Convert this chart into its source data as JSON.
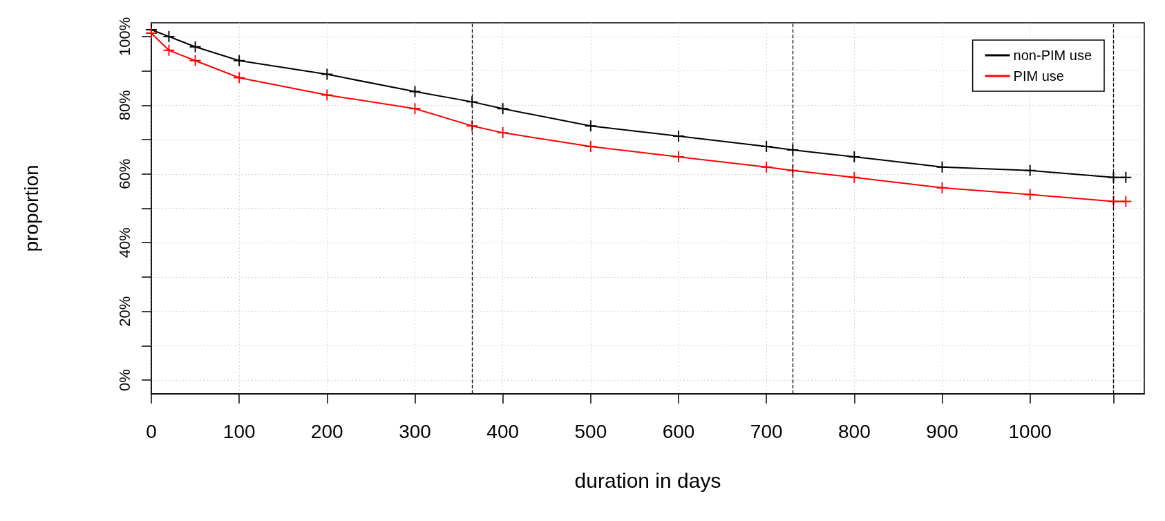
{
  "chart_data": {
    "type": "line",
    "xlabel": "duration in days",
    "ylabel": "proportion",
    "x": [
      0,
      20,
      50,
      100,
      200,
      300,
      365,
      400,
      500,
      600,
      700,
      730,
      800,
      900,
      1000,
      1095,
      1109
    ],
    "series": [
      {
        "name": "non-PIM use",
        "color": "#000000",
        "values": [
          102,
          100,
          97,
          93,
          89,
          84,
          81,
          79,
          74,
          71,
          68,
          67,
          65,
          62,
          61,
          59,
          59
        ]
      },
      {
        "name": "PIM use",
        "color": "#ff0000",
        "values": [
          101,
          96,
          93,
          88,
          83,
          79,
          74,
          72,
          68,
          65,
          62,
          61,
          59,
          56,
          54,
          52,
          52
        ]
      }
    ],
    "xlim": [
      0,
      1130
    ],
    "ylim": [
      -4,
      104
    ],
    "xticks": [
      0,
      100,
      200,
      300,
      400,
      500,
      600,
      700,
      800,
      900,
      1000,
      {
        "value": 1095,
        "label": null
      }
    ],
    "yticks": [
      {
        "value": 0,
        "label": "0%"
      },
      {
        "value": 10,
        "label": null
      },
      {
        "value": 20,
        "label": "20%"
      },
      {
        "value": 30,
        "label": null
      },
      {
        "value": 40,
        "label": "40%"
      },
      {
        "value": 50,
        "label": null
      },
      {
        "value": 60,
        "label": "60%"
      },
      {
        "value": 70,
        "label": null
      },
      {
        "value": 80,
        "label": "80%"
      },
      {
        "value": 90,
        "label": null
      },
      {
        "value": 100,
        "label": "100%"
      }
    ],
    "ref_lines": [
      {
        "axis": "x",
        "value": 365,
        "color": "#000000",
        "line_style": "dashed"
      },
      {
        "axis": "x",
        "value": 730,
        "color": "#000000",
        "line_style": "dashed"
      },
      {
        "axis": "x",
        "value": 1095,
        "color": "#000000",
        "line_style": "dashed"
      }
    ],
    "grid": true,
    "legend": "top right",
    "marker": "cross",
    "line_style": "solid"
  }
}
